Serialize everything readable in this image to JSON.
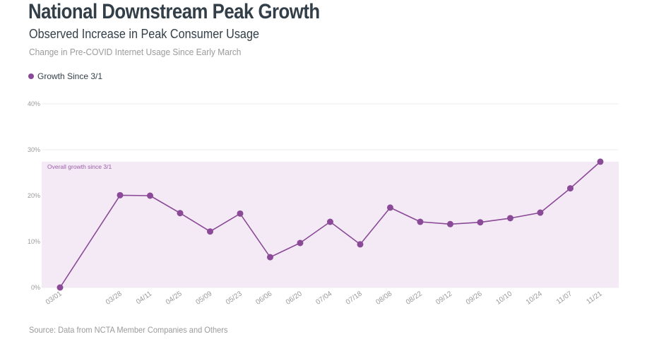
{
  "title": "National Downstream Peak Growth",
  "subtitle": "Observed Increase in Peak Consumer Usage",
  "caption": "Change in Pre-COVID Internet Usage Since Early March",
  "source": "Source: Data from NCTA Member Companies and Others",
  "colors": {
    "series": "#8a4a97",
    "band": "#f4eaf5",
    "band_label": "#9a5fa8",
    "grid": "#ececec"
  },
  "chart_data": {
    "type": "line",
    "x": [
      "03/01",
      "03/28",
      "04/11",
      "04/25",
      "05/09",
      "05/23",
      "06/06",
      "06/20",
      "07/04",
      "07/18",
      "08/08",
      "08/22",
      "09/12",
      "09/26",
      "10/10",
      "10/24",
      "11/07",
      "11/21"
    ],
    "x_spacing_weeks": [
      0,
      4,
      6,
      8,
      10,
      12,
      14,
      16,
      18,
      20,
      22,
      24,
      26,
      28,
      30,
      32,
      34,
      36
    ],
    "series": [
      {
        "name": "Growth Since 3/1",
        "values": [
          0,
          20.1,
          20.0,
          16.2,
          12.2,
          16.1,
          6.6,
          9.7,
          14.3,
          9.4,
          17.4,
          14.3,
          13.8,
          14.2,
          15.1,
          16.3,
          21.6,
          27.4
        ]
      }
    ],
    "y_ticks": [
      "0%",
      "10%",
      "20%",
      "30%",
      "40%"
    ],
    "ylim": [
      0,
      40
    ],
    "annotation": {
      "text": "Overall growth since 3/1",
      "band_from": 0,
      "band_to": 27.4
    },
    "legend": "top-left",
    "grid": true
  }
}
